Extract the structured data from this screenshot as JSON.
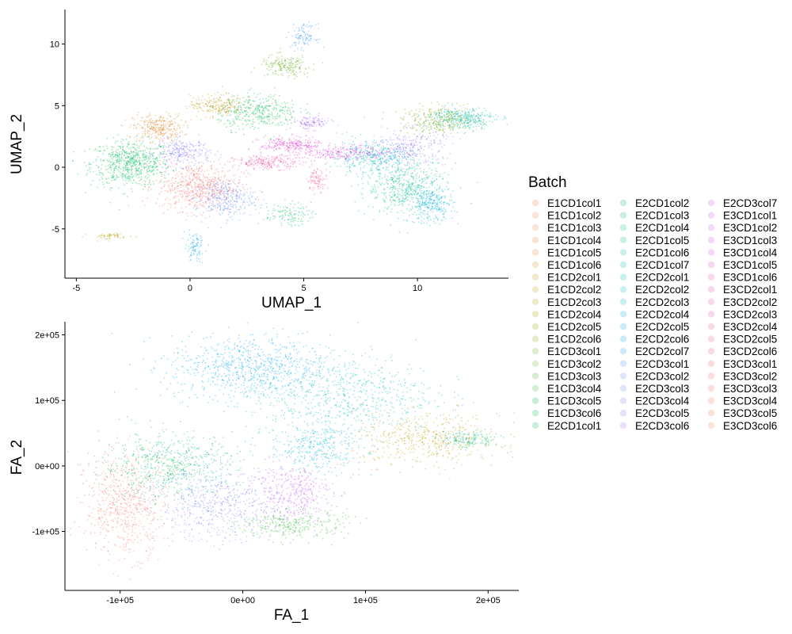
{
  "legend": {
    "title": "Batch",
    "placement": "right",
    "entries": [
      {
        "label": "E1CD1col1",
        "color": "#F8766D"
      },
      {
        "label": "E1CD1col2",
        "color": "#F47A5E"
      },
      {
        "label": "E1CD1col3",
        "color": "#EF7F4F"
      },
      {
        "label": "E1CD1col4",
        "color": "#E88441"
      },
      {
        "label": "E1CD1col5",
        "color": "#E08A33"
      },
      {
        "label": "E1CD1col6",
        "color": "#D79027"
      },
      {
        "label": "E1CD2col1",
        "color": "#CD951C"
      },
      {
        "label": "E1CD2col2",
        "color": "#C29A12"
      },
      {
        "label": "E1CD2col3",
        "color": "#B69E0A"
      },
      {
        "label": "E1CD2col4",
        "color": "#A9A305"
      },
      {
        "label": "E1CD2col5",
        "color": "#9BA606"
      },
      {
        "label": "E1CD2col6",
        "color": "#8CAA0C"
      },
      {
        "label": "E1CD3col1",
        "color": "#7BAD16"
      },
      {
        "label": "E1CD3col2",
        "color": "#68B021"
      },
      {
        "label": "E1CD3col3",
        "color": "#52B32C"
      },
      {
        "label": "E1CD3col4",
        "color": "#35B537"
      },
      {
        "label": "E1CD3col5",
        "color": "#00B743"
      },
      {
        "label": "E1CD3col6",
        "color": "#00B950"
      },
      {
        "label": "E2CD1col1",
        "color": "#00BA5D"
      },
      {
        "label": "E2CD1col2",
        "color": "#00BB6B"
      },
      {
        "label": "E2CD1col3",
        "color": "#00BC79"
      },
      {
        "label": "E2CD1col4",
        "color": "#00BD87"
      },
      {
        "label": "E2CD1col5",
        "color": "#00BD95"
      },
      {
        "label": "E2CD1col6",
        "color": "#00BDA3"
      },
      {
        "label": "E2CD1col7",
        "color": "#00BCB1"
      },
      {
        "label": "E2CD2col1",
        "color": "#00BBBE"
      },
      {
        "label": "E2CD2col2",
        "color": "#00B9CA"
      },
      {
        "label": "E2CD2col3",
        "color": "#00B6D6"
      },
      {
        "label": "E2CD2col4",
        "color": "#00B2E1"
      },
      {
        "label": "E2CD2col5",
        "color": "#00ADEB"
      },
      {
        "label": "E2CD2col6",
        "color": "#00A7F4"
      },
      {
        "label": "E2CD2col7",
        "color": "#12A0FB"
      },
      {
        "label": "E2CD3col1",
        "color": "#3F98FF"
      },
      {
        "label": "E2CD3col2",
        "color": "#5E8FFF"
      },
      {
        "label": "E2CD3col3",
        "color": "#7685FF"
      },
      {
        "label": "E2CD3col4",
        "color": "#8A7BFF"
      },
      {
        "label": "E2CD3col5",
        "color": "#9B71FF"
      },
      {
        "label": "E2CD3col6",
        "color": "#A967FD"
      },
      {
        "label": "E2CD3col7",
        "color": "#B65EF8"
      },
      {
        "label": "E3CD1col1",
        "color": "#C156F2"
      },
      {
        "label": "E3CD1col2",
        "color": "#CB50EB"
      },
      {
        "label": "E3CD1col3",
        "color": "#D34BE3"
      },
      {
        "label": "E3CD1col4",
        "color": "#DB47DA"
      },
      {
        "label": "E3CD1col5",
        "color": "#E145CF"
      },
      {
        "label": "E3CD1col6",
        "color": "#E744C4"
      },
      {
        "label": "E3CD2col1",
        "color": "#EB45B8"
      },
      {
        "label": "E3CD2col2",
        "color": "#EF47AB"
      },
      {
        "label": "E3CD2col3",
        "color": "#F2499E"
      },
      {
        "label": "E3CD2col4",
        "color": "#F44D91"
      },
      {
        "label": "E3CD2col5",
        "color": "#F65284"
      },
      {
        "label": "E3CD2col6",
        "color": "#F75878"
      },
      {
        "label": "E3CD3col1",
        "color": "#F85E6C"
      },
      {
        "label": "E3CD3col2",
        "color": "#F86461"
      },
      {
        "label": "E3CD3col3",
        "color": "#F86A57"
      },
      {
        "label": "E3CD3col4",
        "color": "#F8704E"
      },
      {
        "label": "E3CD3col5",
        "color": "#F87546"
      },
      {
        "label": "E3CD3col6",
        "color": "#F87B40"
      }
    ]
  },
  "chart_data": [
    {
      "type": "scatter",
      "xlabel": "UMAP_1",
      "ylabel": "UMAP_2",
      "xlim": [
        -5.5,
        14.0
      ],
      "ylim": [
        -9.0,
        12.8
      ],
      "xticks": [
        {
          "value": -5,
          "label": "-5"
        },
        {
          "value": 0,
          "label": "0"
        },
        {
          "value": 5,
          "label": "5"
        },
        {
          "value": 10,
          "label": "10"
        }
      ],
      "yticks": [
        {
          "value": -5,
          "label": "-5"
        },
        {
          "value": 0,
          "label": "0"
        },
        {
          "value": 5,
          "label": "5"
        },
        {
          "value": 10,
          "label": "10"
        }
      ],
      "grid": false,
      "point_clouds": [
        {
          "cx": -2.6,
          "cy": 0.3,
          "rx": 1.6,
          "ry": 1.7,
          "color": "#00BA5D",
          "n": 700
        },
        {
          "cx": -1.4,
          "cy": 3.2,
          "rx": 1.0,
          "ry": 1.0,
          "color": "#E08A33",
          "n": 320
        },
        {
          "cx": -0.3,
          "cy": 1.2,
          "rx": 1.1,
          "ry": 1.0,
          "color": "#8A7BFF",
          "n": 260
        },
        {
          "cx": 0.4,
          "cy": -1.6,
          "rx": 1.7,
          "ry": 1.8,
          "color": "#F8766D",
          "n": 650
        },
        {
          "cx": 1.5,
          "cy": -2.6,
          "rx": 1.2,
          "ry": 1.4,
          "color": "#5E8FFF",
          "n": 300
        },
        {
          "cx": 1.2,
          "cy": 5.0,
          "rx": 1.1,
          "ry": 0.8,
          "color": "#C29A12",
          "n": 220
        },
        {
          "cx": 3.0,
          "cy": 4.5,
          "rx": 1.6,
          "ry": 1.3,
          "color": "#00B950",
          "n": 380
        },
        {
          "cx": 4.2,
          "cy": 8.2,
          "rx": 1.0,
          "ry": 0.8,
          "color": "#68B021",
          "n": 200
        },
        {
          "cx": 5.0,
          "cy": 10.6,
          "rx": 0.5,
          "ry": 0.9,
          "color": "#3F98FF",
          "n": 110
        },
        {
          "cx": 5.3,
          "cy": 3.6,
          "rx": 0.8,
          "ry": 0.5,
          "color": "#A967FD",
          "n": 120
        },
        {
          "cx": 4.4,
          "cy": 1.8,
          "rx": 1.2,
          "ry": 0.6,
          "color": "#E145CF",
          "n": 260
        },
        {
          "cx": 3.5,
          "cy": 0.4,
          "rx": 1.4,
          "ry": 0.5,
          "color": "#F2499E",
          "n": 220
        },
        {
          "cx": 5.6,
          "cy": -1.0,
          "rx": 0.4,
          "ry": 0.8,
          "color": "#F65284",
          "n": 90
        },
        {
          "cx": 8.0,
          "cy": 0.8,
          "rx": 1.6,
          "ry": 1.2,
          "color": "#00B9CA",
          "n": 380
        },
        {
          "cx": 9.5,
          "cy": -1.6,
          "rx": 1.6,
          "ry": 2.0,
          "color": "#00BD87",
          "n": 520
        },
        {
          "cx": 10.6,
          "cy": -3.0,
          "rx": 0.9,
          "ry": 1.4,
          "color": "#00B2E1",
          "n": 280
        },
        {
          "cx": 11.0,
          "cy": 3.8,
          "rx": 1.5,
          "ry": 1.0,
          "color": "#7BAD16",
          "n": 340
        },
        {
          "cx": 12.0,
          "cy": 4.0,
          "rx": 1.3,
          "ry": 0.8,
          "color": "#00BCB1",
          "n": 300
        },
        {
          "cx": 9.6,
          "cy": 1.6,
          "rx": 1.5,
          "ry": 1.4,
          "color": "#9B71FF",
          "n": 300
        },
        {
          "cx": -3.5,
          "cy": -5.6,
          "rx": 0.8,
          "ry": 0.25,
          "color": "#B69E0A",
          "n": 60
        },
        {
          "cx": 0.2,
          "cy": -6.5,
          "rx": 0.4,
          "ry": 1.0,
          "color": "#00A7F4",
          "n": 90
        },
        {
          "cx": 4.3,
          "cy": -3.8,
          "rx": 0.9,
          "ry": 0.8,
          "color": "#00BB6B",
          "n": 120
        },
        {
          "cx": 6.8,
          "cy": 1.2,
          "rx": 1.6,
          "ry": 0.6,
          "color": "#DB47DA",
          "n": 240
        }
      ]
    },
    {
      "type": "scatter",
      "xlabel": "FA_1",
      "ylabel": "FA_2",
      "xlim": [
        -145000,
        225000
      ],
      "ylim": [
        -190000,
        220000
      ],
      "xticks": [
        {
          "value": -100000,
          "label": "-1e+05"
        },
        {
          "value": 0,
          "label": "0e+00"
        },
        {
          "value": 100000,
          "label": "1e+05"
        },
        {
          "value": 200000,
          "label": "2e+05"
        }
      ],
      "yticks": [
        {
          "value": -100000,
          "label": "-1e+05"
        },
        {
          "value": 0,
          "label": "0e+00"
        },
        {
          "value": 100000,
          "label": "1e+05"
        },
        {
          "value": 200000,
          "label": "2e+05"
        }
      ],
      "grid": false,
      "point_clouds": [
        {
          "cx": 5000,
          "cy": 150000,
          "rx": 60000,
          "ry": 45000,
          "color": "#00A7F4",
          "n": 750
        },
        {
          "cx": 80000,
          "cy": 110000,
          "rx": 70000,
          "ry": 55000,
          "color": "#00BCB1",
          "n": 700
        },
        {
          "cx": 150000,
          "cy": 40000,
          "rx": 55000,
          "ry": 35000,
          "color": "#B69E0A",
          "n": 500
        },
        {
          "cx": 185000,
          "cy": 40000,
          "rx": 22000,
          "ry": 12000,
          "color": "#00BD87",
          "n": 150
        },
        {
          "cx": -95000,
          "cy": -60000,
          "rx": 30000,
          "ry": 70000,
          "color": "#F8766D",
          "n": 650
        },
        {
          "cx": -60000,
          "cy": 0,
          "rx": 50000,
          "ry": 45000,
          "color": "#00BB6B",
          "n": 650
        },
        {
          "cx": -20000,
          "cy": -60000,
          "rx": 45000,
          "ry": 50000,
          "color": "#8A7BFF",
          "n": 520
        },
        {
          "cx": 40000,
          "cy": -40000,
          "rx": 30000,
          "ry": 40000,
          "color": "#C156F2",
          "n": 380
        },
        {
          "cx": 40000,
          "cy": -90000,
          "rx": 40000,
          "ry": 20000,
          "color": "#35B537",
          "n": 300
        },
        {
          "cx": 60000,
          "cy": 30000,
          "rx": 35000,
          "ry": 35000,
          "color": "#00B2E1",
          "n": 360
        }
      ]
    }
  ]
}
